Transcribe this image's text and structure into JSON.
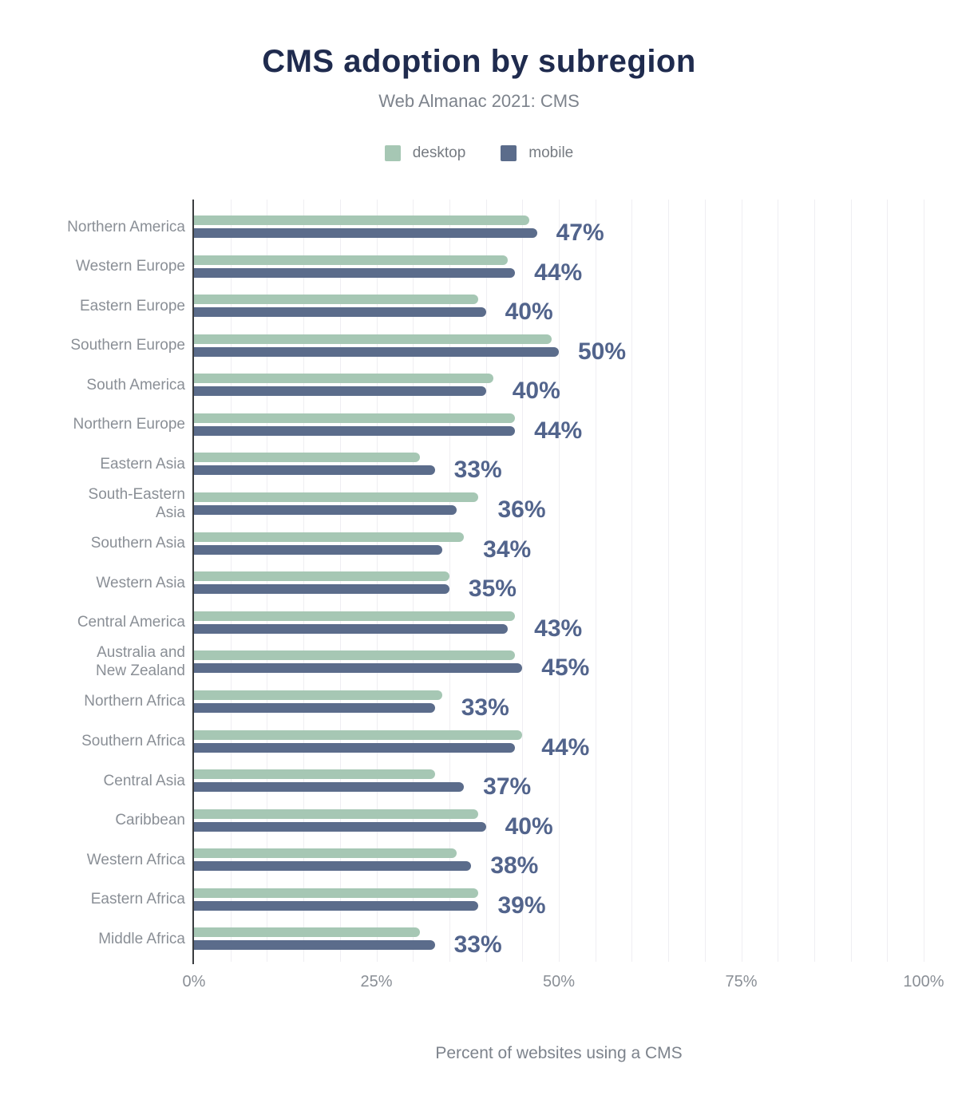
{
  "chart_data": {
    "type": "bar",
    "orientation": "horizontal",
    "title": "CMS adoption by subregion",
    "subtitle": "Web Almanac 2021: CMS",
    "xlabel": "Percent of websites using a CMS",
    "xlim": [
      0,
      100
    ],
    "x_ticks": [
      "0%",
      "25%",
      "50%",
      "75%",
      "100%"
    ],
    "x_tick_values": [
      0,
      25,
      50,
      75,
      100
    ],
    "grid_step": 5,
    "grid_on": true,
    "legend_position": "top",
    "categories": [
      "Northern America",
      "Western Europe",
      "Eastern Europe",
      "Southern Europe",
      "South America",
      "Northern Europe",
      "Eastern Asia",
      "South-Eastern Asia",
      "Southern Asia",
      "Western Asia",
      "Central America",
      "Australia and New Zealand",
      "Northern Africa",
      "Southern Africa",
      "Central Asia",
      "Caribbean",
      "Western Africa",
      "Eastern Africa",
      "Middle Africa"
    ],
    "category_lines": [
      [
        "Northern America"
      ],
      [
        "Western Europe"
      ],
      [
        "Eastern Europe"
      ],
      [
        "Southern Europe"
      ],
      [
        "South America"
      ],
      [
        "Northern Europe"
      ],
      [
        "Eastern Asia"
      ],
      [
        "South-Eastern",
        "Asia"
      ],
      [
        "Southern Asia"
      ],
      [
        "Western Asia"
      ],
      [
        "Central America"
      ],
      [
        "Australia and",
        "New Zealand"
      ],
      [
        "Northern Africa"
      ],
      [
        "Southern Africa"
      ],
      [
        "Central Asia"
      ],
      [
        "Caribbean"
      ],
      [
        "Western Africa"
      ],
      [
        "Eastern Africa"
      ],
      [
        "Middle Africa"
      ]
    ],
    "series": [
      {
        "name": "desktop",
        "color": "#a6c7b4",
        "values": [
          46,
          43,
          39,
          49,
          41,
          44,
          31,
          39,
          37,
          35,
          44,
          44,
          34,
          45,
          33,
          39,
          36,
          39,
          31
        ]
      },
      {
        "name": "mobile",
        "color": "#5b6c8b",
        "values": [
          47,
          44,
          40,
          50,
          40,
          44,
          33,
          36,
          34,
          35,
          43,
          45,
          33,
          44,
          37,
          40,
          38,
          39,
          33
        ]
      }
    ],
    "data_labels": [
      "47%",
      "44%",
      "40%",
      "50%",
      "40%",
      "44%",
      "33%",
      "36%",
      "34%",
      "35%",
      "43%",
      "45%",
      "33%",
      "44%",
      "37%",
      "40%",
      "38%",
      "39%",
      "33%"
    ],
    "data_label_series": "mobile"
  },
  "colors": {
    "title": "#1f2b4e",
    "subtitle": "#7d838c",
    "data_label": "#52648c",
    "axis_text": "#8a8f96",
    "axis_line": "#3a3c3f",
    "gridline": "#efeef2",
    "desktop": "#a6c7b4",
    "mobile": "#5b6c8b"
  }
}
